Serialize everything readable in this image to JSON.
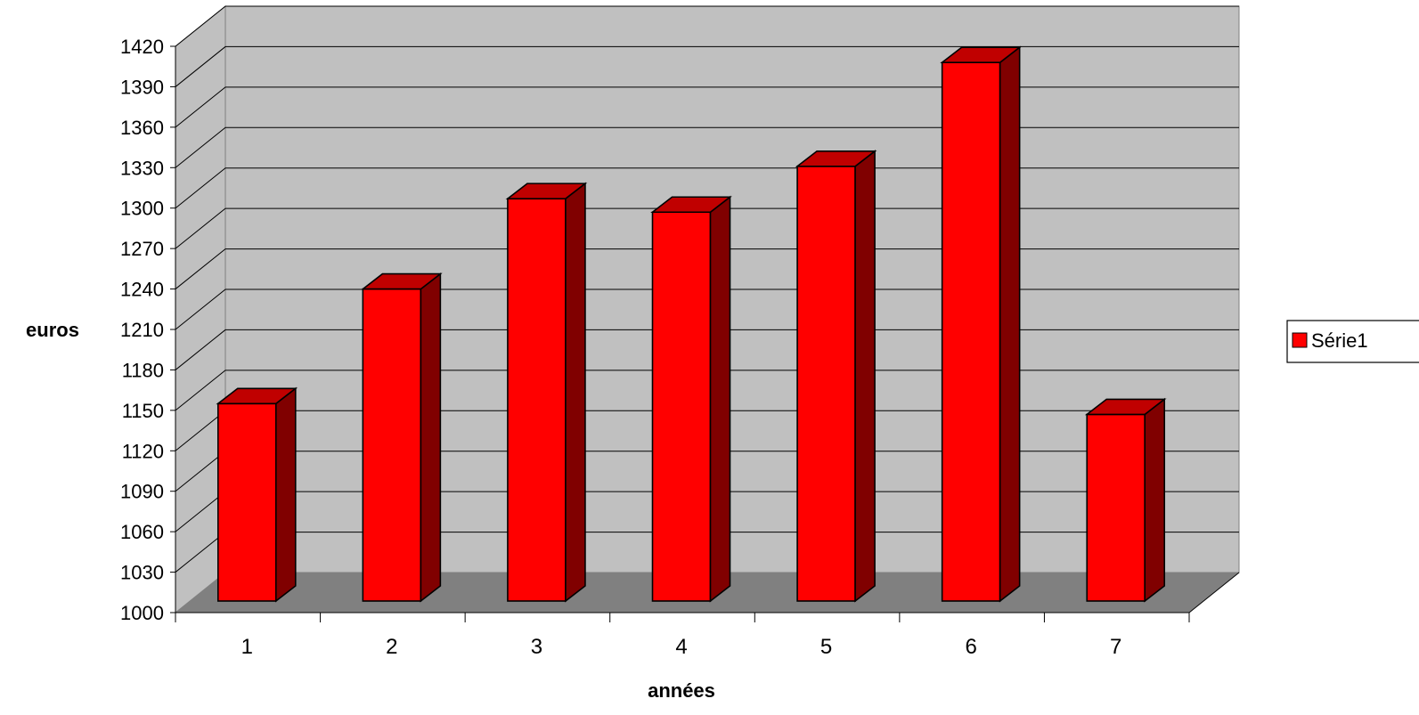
{
  "chart_data": {
    "type": "bar",
    "title": "",
    "xlabel": "années",
    "ylabel": "euros",
    "categories": [
      "1",
      "2",
      "3",
      "4",
      "5",
      "6",
      "7"
    ],
    "series": [
      {
        "name": "Série1",
        "values": [
          1155,
          1240,
          1307,
          1297,
          1331,
          1408,
          1147
        ],
        "color": "#ff0000"
      }
    ],
    "ylim": [
      1000,
      1420
    ],
    "yticks": [
      1000,
      1030,
      1060,
      1090,
      1120,
      1150,
      1180,
      1210,
      1240,
      1270,
      1300,
      1330,
      1360,
      1390,
      1420
    ],
    "grid": true,
    "legend_position": "right",
    "style": "3d-column",
    "colors": {
      "wall": "#c0c0c0",
      "floor": "#808080",
      "bar_front": "#ff0000",
      "bar_top": "#c00000",
      "bar_side": "#800000"
    }
  }
}
